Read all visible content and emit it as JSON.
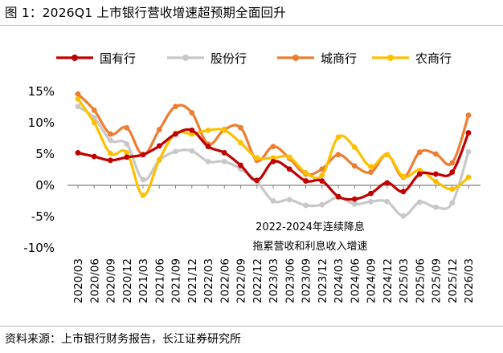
{
  "figure_title": "图  1：2026Q1 上市银行营收增速超预期全面回升",
  "source_note": "资料来源：上市银行财务报告，长江证券研究所",
  "chart_data": {
    "type": "line",
    "title": "",
    "ylabel": "",
    "xlabel": "",
    "ylim": [
      -10,
      15
    ],
    "yticks": [
      "15%",
      "10%",
      "5%",
      "0%",
      "-5%",
      "-10%"
    ],
    "grid": false,
    "legend_position": "top",
    "categories": [
      "2020/03",
      "2020/06",
      "2020/09",
      "2020/12",
      "2021/03",
      "2021/06",
      "2021/09",
      "2021/12",
      "2022/03",
      "2022/06",
      "2022/09",
      "2022/12",
      "2023/03",
      "2023/06",
      "2023/09",
      "2023/12",
      "2024/03",
      "2024/06",
      "2024/09",
      "2024/12",
      "2025/03",
      "2025/06",
      "2025/09",
      "2025/12",
      "2026/03"
    ],
    "series": [
      {
        "name": "国有行",
        "color": "#c00000",
        "values": [
          5.2,
          4.6,
          4.0,
          4.5,
          4.9,
          6.3,
          8.2,
          8.8,
          6.2,
          5.2,
          3.2,
          0.8,
          3.8,
          2.6,
          0.7,
          0.7,
          -1.8,
          -2.2,
          -1.3,
          0.4,
          -1.0,
          1.8,
          1.8,
          2.1,
          8.4
        ]
      },
      {
        "name": "股份行",
        "color": "#c8c8c8",
        "values": [
          12.6,
          10.8,
          7.2,
          6.6,
          0.9,
          4.0,
          5.4,
          5.5,
          3.8,
          3.8,
          2.6,
          0.6,
          -2.5,
          -2.3,
          -3.2,
          -3.1,
          -1.9,
          -3.0,
          -2.6,
          -2.6,
          -4.9,
          -2.7,
          -3.5,
          -2.8,
          5.4
        ]
      },
      {
        "name": "城商行",
        "color": "#ed7d31",
        "values": [
          14.6,
          12.0,
          8.2,
          9.2,
          4.9,
          8.9,
          12.6,
          11.6,
          6.6,
          8.9,
          9.2,
          4.0,
          6.2,
          4.3,
          1.8,
          2.6,
          4.9,
          3.1,
          2.1,
          4.9,
          1.3,
          5.3,
          5.0,
          3.6,
          11.2
        ]
      },
      {
        "name": "农商行",
        "color": "#ffc000",
        "values": [
          13.8,
          10.0,
          5.1,
          5.2,
          -1.6,
          4.1,
          8.3,
          8.2,
          8.8,
          8.8,
          6.8,
          4.4,
          4.4,
          4.5,
          2.0,
          1.6,
          7.7,
          6.1,
          3.0,
          4.9,
          1.4,
          2.4,
          0.6,
          -0.6,
          1.3
        ]
      }
    ],
    "annotations": [
      "2022-2024年连续降息",
      "拖累营收和利息收入增速"
    ]
  }
}
